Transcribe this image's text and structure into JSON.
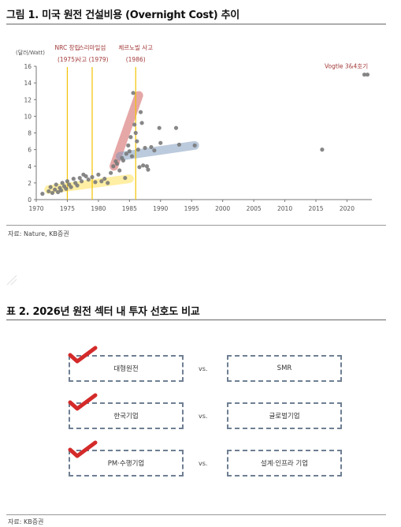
{
  "figure1": {
    "title": "그림 1. 미국 원전 건설비용 (Overnight Cost) 추이",
    "source": "자료: Nature, KB증권"
  },
  "table2": {
    "title": "표 2. 2026년 원전 섹터 내 투자 선호도 비교",
    "source": "자료: KB증권",
    "rows": [
      {
        "preferred": "대형원전",
        "vs": "vs.",
        "other": "SMR"
      },
      {
        "preferred": "한국기업",
        "vs": "vs.",
        "other": "글로벌기업"
      },
      {
        "preferred": "PM·수행기업",
        "vs": "vs.",
        "other": "설계·인프라 기업"
      }
    ]
  },
  "colors": {
    "check": "#d42a2a",
    "box_border": "#6f7f93",
    "event_line": "#f2c200",
    "dots": "#7a7a7a"
  },
  "chart_data": {
    "type": "scatter",
    "ylabel": "(달러/Watt)",
    "xlim": [
      1970,
      2024
    ],
    "ylim": [
      0,
      16
    ],
    "x_ticks": [
      1970,
      1975,
      1980,
      1985,
      1990,
      1995,
      2000,
      2005,
      2010,
      2015,
      2020
    ],
    "y_ticks": [
      0,
      2,
      4,
      6,
      8,
      10,
      12,
      14,
      16
    ],
    "grid": false,
    "events": [
      {
        "x": 1975,
        "label1": "NRC 창립",
        "label2": "(1975)"
      },
      {
        "x": 1979,
        "label1": "스리마일섬",
        "label2": "사고 (1979)"
      },
      {
        "x": 1986,
        "label1": "체르노빌 사고",
        "label2": "(1986)"
      }
    ],
    "annotation": {
      "text": "Vogtle 3&4호기",
      "x": 2023,
      "y": 15
    },
    "points": [
      [
        1971,
        0.7
      ],
      [
        1972,
        1.0
      ],
      [
        1972.3,
        1.5
      ],
      [
        1972.6,
        0.8
      ],
      [
        1973,
        1.2
      ],
      [
        1973.2,
        1.8
      ],
      [
        1973.5,
        0.9
      ],
      [
        1973.8,
        1.4
      ],
      [
        1974,
        1.1
      ],
      [
        1974.2,
        2.0
      ],
      [
        1974.5,
        1.6
      ],
      [
        1974.8,
        1.3
      ],
      [
        1975,
        2.2
      ],
      [
        1975.3,
        1.8
      ],
      [
        1975.6,
        1.5
      ],
      [
        1976,
        2.5
      ],
      [
        1976.3,
        2.0
      ],
      [
        1976.6,
        1.7
      ],
      [
        1977,
        2.6
      ],
      [
        1977.3,
        2.2
      ],
      [
        1977.6,
        3.0
      ],
      [
        1978,
        2.8
      ],
      [
        1978.4,
        2.4
      ],
      [
        1979,
        2.7
      ],
      [
        1979.5,
        2.1
      ],
      [
        1980,
        3.0
      ],
      [
        1980.5,
        2.2
      ],
      [
        1981,
        2.5
      ],
      [
        1981.5,
        2.0
      ],
      [
        1982,
        3.2
      ],
      [
        1982.4,
        4.0
      ],
      [
        1982.8,
        4.6
      ],
      [
        1983,
        4.3
      ],
      [
        1983.4,
        3.5
      ],
      [
        1983.8,
        5.0
      ],
      [
        1984,
        4.7
      ],
      [
        1984.3,
        2.6
      ],
      [
        1984.5,
        5.5
      ],
      [
        1984.8,
        6.5
      ],
      [
        1985,
        5.8
      ],
      [
        1985.2,
        7.5
      ],
      [
        1985.4,
        5.2
      ],
      [
        1985.6,
        12.8
      ],
      [
        1985.8,
        9.0
      ],
      [
        1986,
        8.0
      ],
      [
        1986.2,
        7.0
      ],
      [
        1986.4,
        6.0
      ],
      [
        1986.6,
        3.9
      ],
      [
        1986.8,
        10.5
      ],
      [
        1987,
        9.2
      ],
      [
        1987.2,
        4.1
      ],
      [
        1987.5,
        6.2
      ],
      [
        1987.8,
        4.0
      ],
      [
        1988,
        3.6
      ],
      [
        1988.5,
        6.3
      ],
      [
        1989,
        5.9
      ],
      [
        1989.8,
        8.6
      ],
      [
        1990,
        6.8
      ],
      [
        1992.5,
        8.6
      ],
      [
        1993,
        6.6
      ],
      [
        1995.5,
        6.5
      ],
      [
        2016,
        6.0
      ],
      [
        2022.8,
        15.0
      ],
      [
        2023.3,
        15.0
      ]
    ],
    "highlight_bands": [
      {
        "color": "yellow",
        "from": [
          1972,
          1.2
        ],
        "to": [
          1985,
          2.5
        ]
      },
      {
        "color": "red",
        "from": [
          1982.5,
          4.0
        ],
        "to": [
          1986.5,
          12.5
        ]
      },
      {
        "color": "blue",
        "from": [
          1983.5,
          5.2
        ],
        "to": [
          1995.5,
          6.5
        ]
      }
    ]
  }
}
